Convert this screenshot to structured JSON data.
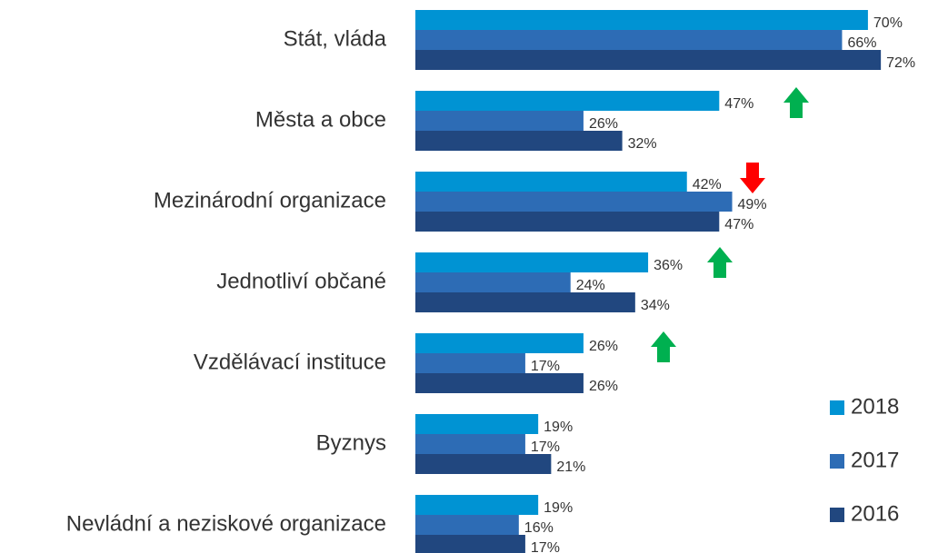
{
  "chart_data": {
    "type": "bar",
    "orientation": "horizontal",
    "categories": [
      "Stát, vláda",
      "Města a obce",
      "Mezinárodní organizace",
      "Jednotliví občané",
      "Vzdělávací instituce",
      "Byznys",
      "Nevládní a neziskové organizace"
    ],
    "series": [
      {
        "name": "2018",
        "color": "#0093d3",
        "values": [
          70,
          47,
          42,
          36,
          26,
          19,
          19
        ],
        "value_labels": [
          "70%",
          "47%",
          "42%",
          "36%",
          "26%",
          "19%",
          "19%"
        ]
      },
      {
        "name": "2017",
        "color": "#2d6cb5",
        "values": [
          66,
          26,
          49,
          24,
          17,
          17,
          16
        ],
        "value_labels": [
          "66%",
          "26%",
          "49%",
          "24%",
          "17%",
          "17%",
          "16%"
        ]
      },
      {
        "name": "2016",
        "color": "#21477f",
        "values": [
          72,
          32,
          47,
          34,
          26,
          21,
          17
        ],
        "value_labels": [
          "72%",
          "32%",
          "47%",
          "34%",
          "26%",
          "21%",
          "17%"
        ]
      }
    ],
    "legend": "lower right"
  }
}
